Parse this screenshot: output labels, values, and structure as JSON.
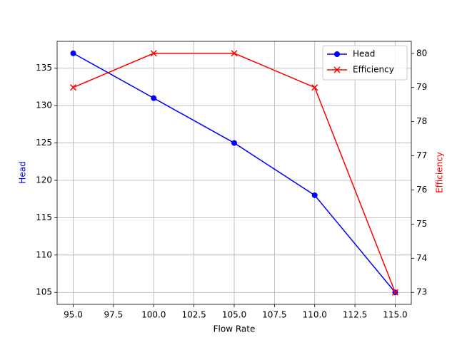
{
  "chart_data": {
    "type": "line",
    "x": [
      95,
      100,
      105,
      110,
      115
    ],
    "x_label": "Flow Rate",
    "y_label": "Head",
    "y2_label": "Efficiency",
    "series": [
      {
        "name": "Head",
        "color": "#0000ff",
        "marker": "circle",
        "values": [
          137,
          131,
          125,
          118,
          105
        ]
      },
      {
        "name": "Efficiency",
        "color": "#ff0000",
        "marker": "x",
        "axis": "y2",
        "values": [
          79,
          80,
          80,
          79,
          73
        ]
      }
    ],
    "xlim": [
      94,
      116
    ],
    "xticks": [
      {
        "value": 95,
        "label": "95.0"
      },
      {
        "value": 97.5,
        "label": "97.5"
      },
      {
        "value": 100,
        "label": "100.0"
      },
      {
        "value": 102.5,
        "label": "102.5"
      },
      {
        "value": 105,
        "label": "105.0"
      },
      {
        "value": 107.5,
        "label": "107.5"
      },
      {
        "value": 110,
        "label": "110.0"
      },
      {
        "value": 112.5,
        "label": "112.5"
      },
      {
        "value": 115,
        "label": "115.0"
      }
    ],
    "ylim": [
      103.4,
      138.6
    ],
    "yticks": [
      105,
      110,
      115,
      120,
      125,
      130,
      135
    ],
    "y2lim": [
      72.65,
      80.35
    ],
    "y2ticks": [
      73,
      74,
      75,
      76,
      77,
      78,
      79,
      80
    ],
    "grid": true,
    "legend": "upper right"
  }
}
